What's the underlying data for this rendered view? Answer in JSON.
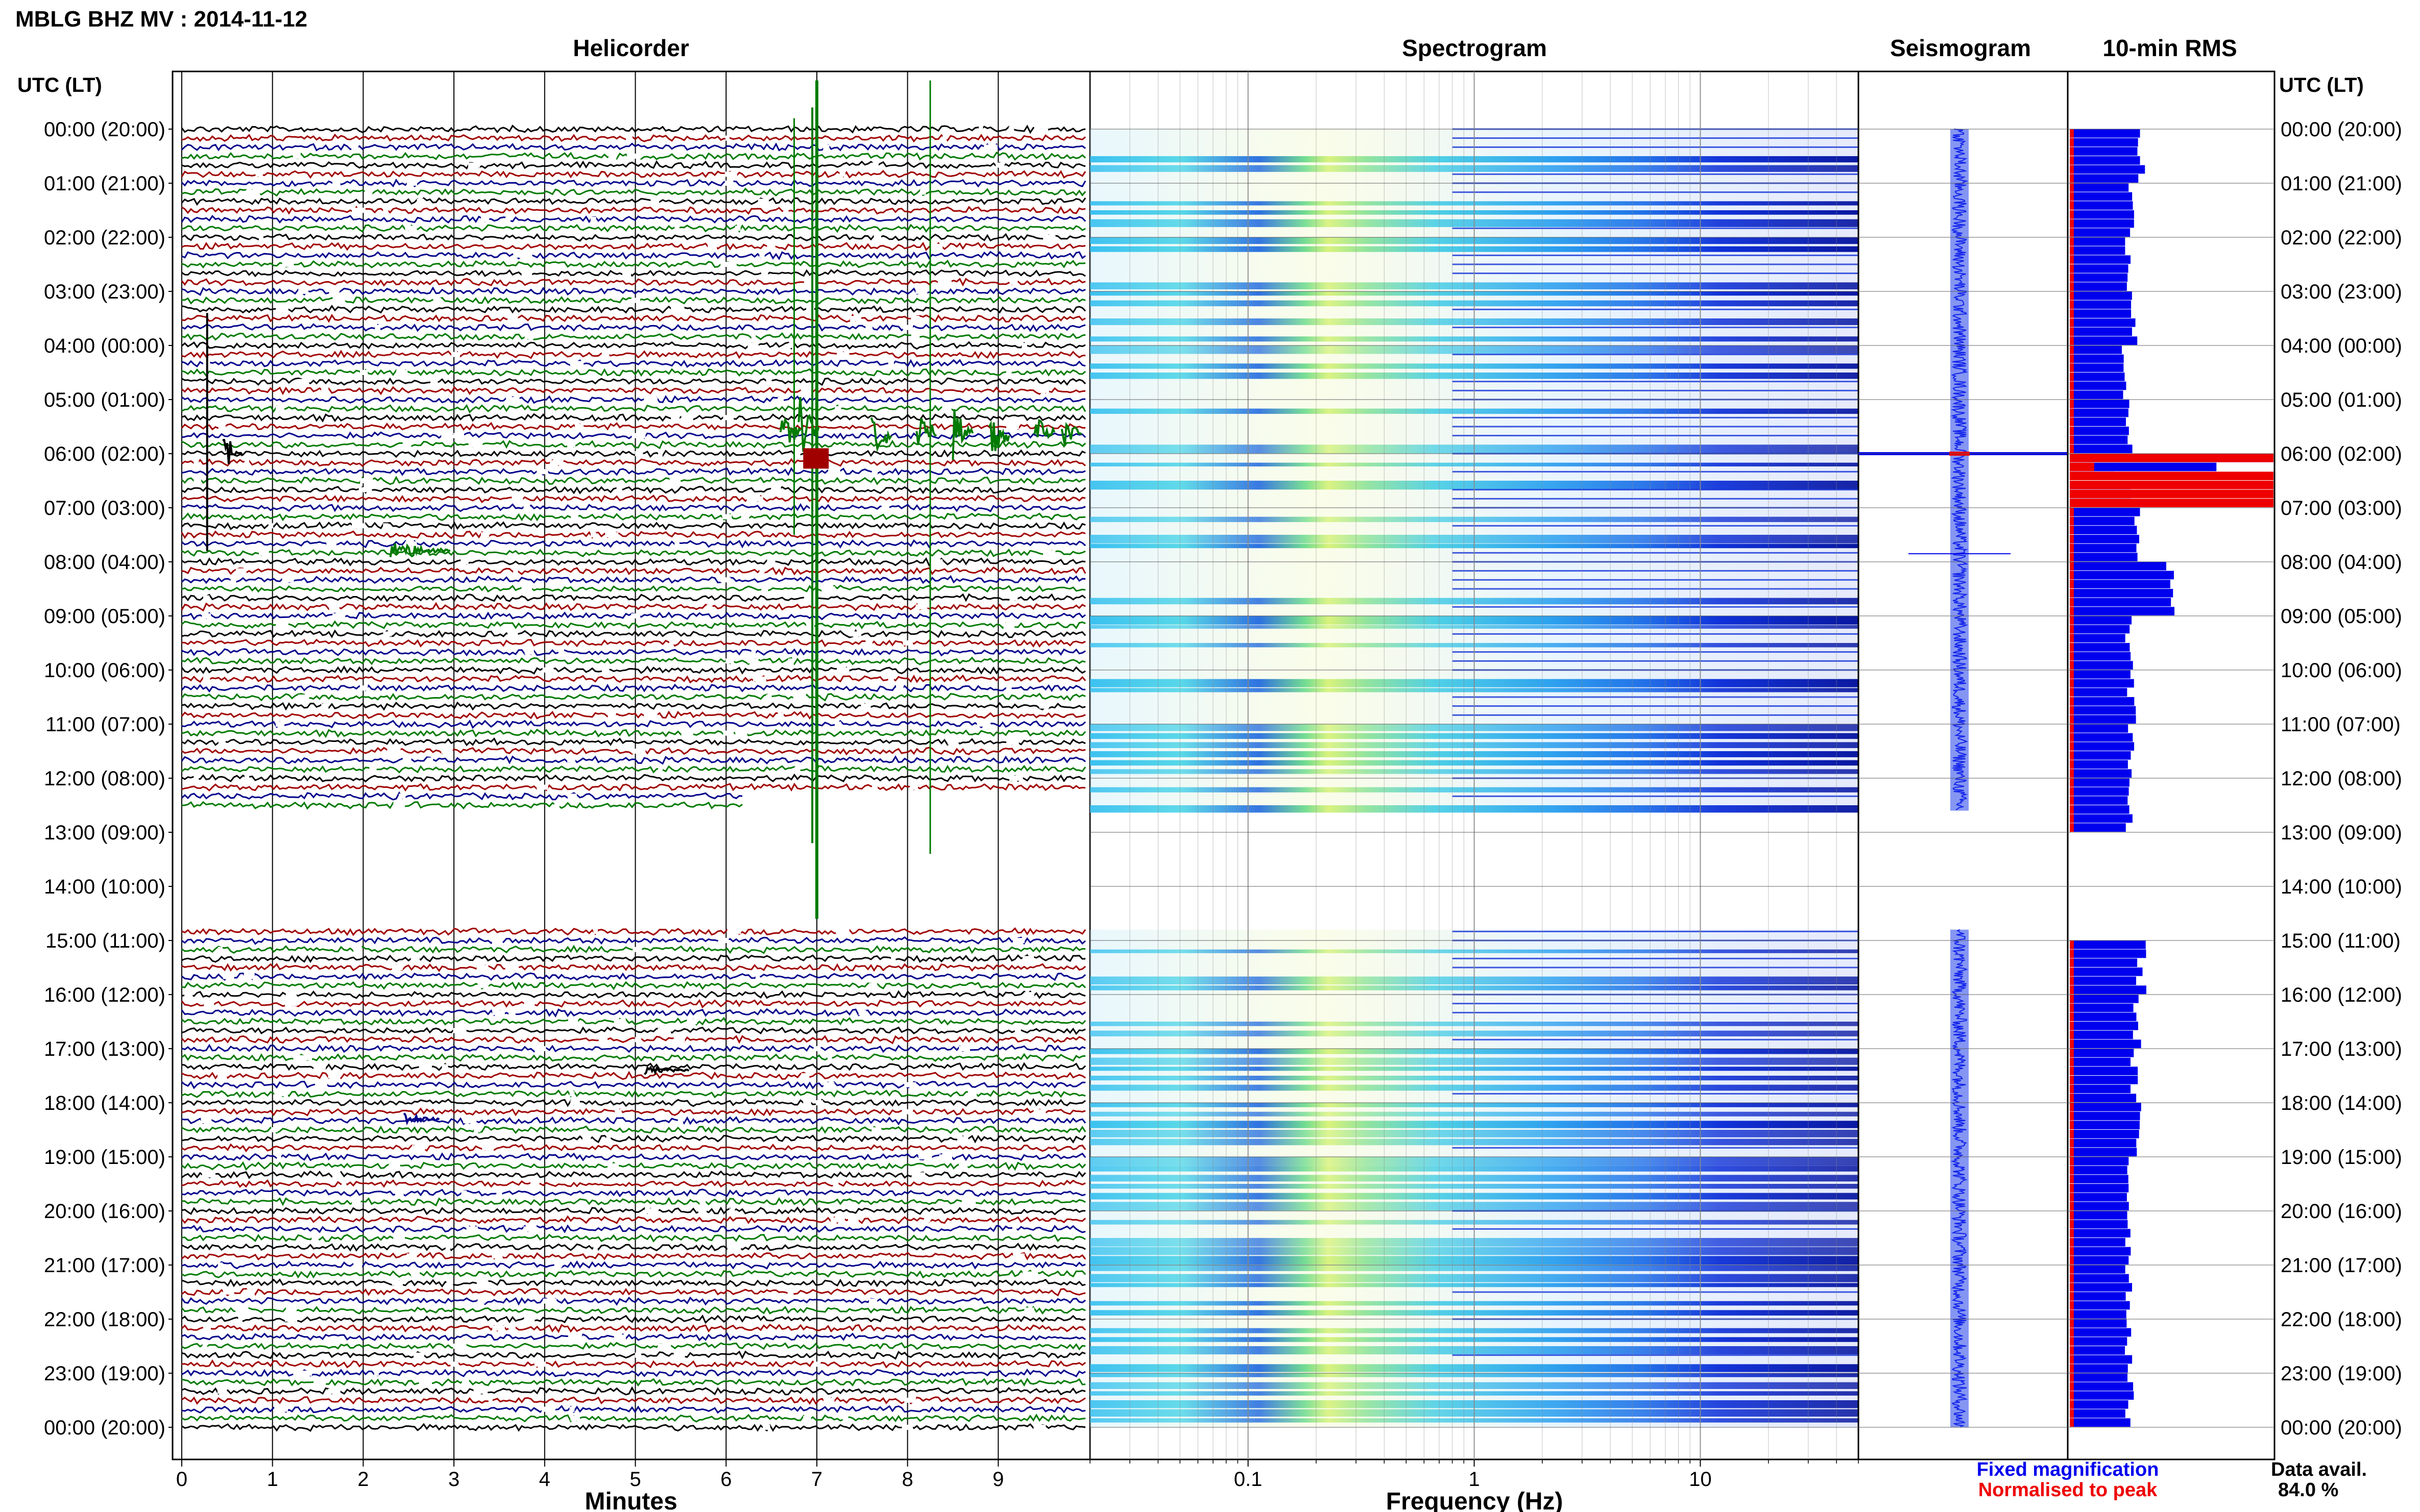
{
  "header": {
    "title": "MBLG BHZ MV : 2014-11-12",
    "panel_titles": [
      "Helicorder",
      "Spectrogram",
      "Seismogram",
      "10-min RMS"
    ],
    "utc_label_left": "UTC (LT)",
    "utc_label_right": "UTC (LT)"
  },
  "footer": {
    "legend_fixed": "Fixed magnification",
    "legend_norm": "Normalised to peak",
    "data_avail_label": "Data avail.",
    "data_avail_value": "84.0 %"
  },
  "colors": {
    "trace_cycle": [
      "#000000",
      "#a00000",
      "#00008b",
      "#007a00"
    ],
    "rms_fixed": "#0000ee",
    "rms_norm": "#ee0000",
    "legend_fixed": "#0000ee",
    "legend_norm": "#ee0000"
  },
  "chart_data": [
    {
      "type": "line",
      "name": "helicorder",
      "title": "Helicorder",
      "xlabel": "Minutes",
      "xlim": [
        0,
        10
      ],
      "x_ticks": [
        0,
        1,
        2,
        3,
        4,
        5,
        6,
        7,
        8,
        9
      ],
      "y_tick_labels": [
        "00:00 (20:00)",
        "01:00 (21:00)",
        "02:00 (22:00)",
        "03:00 (23:00)",
        "04:00 (00:00)",
        "05:00 (01:00)",
        "06:00 (02:00)",
        "07:00 (03:00)",
        "08:00 (04:00)",
        "09:00 (05:00)",
        "10:00 (06:00)",
        "11:00 (07:00)",
        "12:00 (08:00)",
        "13:00 (09:00)",
        "14:00 (10:00)",
        "15:00 (11:00)",
        "16:00 (12:00)",
        "17:00 (13:00)",
        "18:00 (14:00)",
        "19:00 (15:00)",
        "20:00 (16:00)",
        "21:00 (17:00)",
        "22:00 (18:00)",
        "23:00 (19:00)",
        "00:00 (20:00)"
      ],
      "rows_per_hour": 6,
      "data_gap_hours": [
        12.5,
        14.8
      ],
      "events": [
        {
          "hour": 6.0,
          "minute": 7.0,
          "note": "large event"
        },
        {
          "hour": 8.0,
          "minute": 2.3
        },
        {
          "hour": 18.3,
          "minute": 2.5
        },
        {
          "hour": 6.0,
          "minute": 0.5
        }
      ]
    },
    {
      "type": "heatmap",
      "name": "spectrogram",
      "title": "Spectrogram",
      "xlabel": "Frequency (Hz)",
      "x_scale": "log",
      "xlim": [
        0.02,
        50
      ],
      "x_ticks": [
        0.1,
        1,
        10
      ],
      "x_tick_labels": [
        "0.1",
        "1",
        "10"
      ],
      "peak_frequency_hz": 0.25
    },
    {
      "type": "line",
      "name": "seismogram",
      "title": "Seismogram",
      "spike_hour": 6.0
    },
    {
      "type": "bar",
      "name": "rms",
      "title": "10-min RMS",
      "orientation": "horizontal",
      "series": [
        {
          "name": "Fixed magnification",
          "values_by_hour": [
            0.36,
            0.31,
            0.3,
            0.32,
            0.28,
            0.3,
            1.0,
            0.33,
            0.5,
            0.3,
            0.31,
            0.31,
            0.3,
            null,
            null,
            0.36,
            0.34,
            0.32,
            0.34,
            0.3,
            0.3,
            0.3,
            0.3,
            0.3
          ]
        },
        {
          "name": "Normalised to peak",
          "values_by_hour": [
            0.02,
            0.02,
            0.02,
            0.02,
            0.02,
            0.02,
            1.0,
            0.02,
            0.02,
            0.02,
            0.02,
            0.02,
            0.02,
            null,
            null,
            0.02,
            0.02,
            0.02,
            0.02,
            0.02,
            0.02,
            0.02,
            0.02,
            0.02
          ]
        }
      ]
    }
  ]
}
